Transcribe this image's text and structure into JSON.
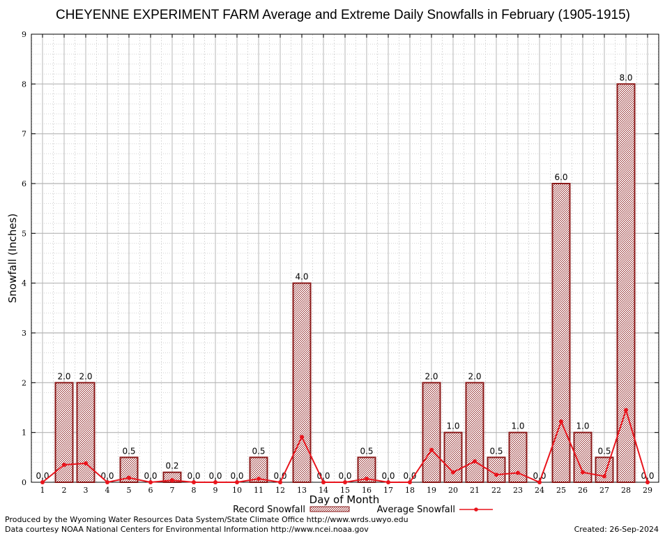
{
  "chart_data": {
    "type": "bar",
    "title": "CHEYENNE EXPERIMENT FARM Average and Extreme Daily Snowfalls in February (1905-1915)",
    "xlabel": "Day of Month",
    "ylabel": "Snowfall (Inches)",
    "ylim": [
      0,
      9
    ],
    "yticks": [
      0,
      1,
      2,
      3,
      4,
      5,
      6,
      7,
      8,
      9
    ],
    "categories": [
      "1",
      "2",
      "3",
      "4",
      "5",
      "6",
      "7",
      "8",
      "9",
      "10",
      "11",
      "12",
      "13",
      "14",
      "15",
      "16",
      "17",
      "18",
      "19",
      "20",
      "21",
      "22",
      "23",
      "24",
      "25",
      "26",
      "27",
      "28",
      "29"
    ],
    "series": [
      {
        "name": "Record Snowfall",
        "type": "bar",
        "color": "#8b1a1a",
        "values": [
          0.0,
          2.0,
          2.0,
          0.0,
          0.5,
          0.0,
          0.2,
          0.0,
          0.0,
          0.0,
          0.5,
          0.0,
          4.0,
          0.0,
          0.0,
          0.5,
          0.0,
          0.0,
          2.0,
          1.0,
          2.0,
          0.5,
          1.0,
          0.0,
          6.0,
          1.0,
          0.5,
          8.0,
          0.0
        ],
        "labels": [
          "0.0",
          "2.0",
          "2.0",
          "0.0",
          "0.5",
          "0.0",
          "0.2",
          "0.0",
          "0.0",
          "0.0",
          "0.5",
          "0.0",
          "4.0",
          "0.0",
          "0.0",
          "0.5",
          "0.0",
          "0.0",
          "2.0",
          "1.0",
          "2.0",
          "0.5",
          "1.0",
          "0.0",
          "6.0",
          "1.0",
          "0.5",
          "8.0",
          "0.0"
        ]
      },
      {
        "name": "Average Snowfall",
        "type": "line",
        "color": "#e8141c",
        "values": [
          0.0,
          0.35,
          0.38,
          0.0,
          0.09,
          0.0,
          0.04,
          0.0,
          0.0,
          0.0,
          0.07,
          0.0,
          0.91,
          0.0,
          0.0,
          0.07,
          0.0,
          0.0,
          0.65,
          0.2,
          0.42,
          0.15,
          0.19,
          0.0,
          1.22,
          0.2,
          0.12,
          1.45,
          0.0
        ]
      }
    ],
    "grid": true,
    "legend": "bottom"
  },
  "footer": {
    "credit_line1": "Produced by the Wyoming Water Resources Data System/State Climate Office http://www.wrds.uwyo.edu",
    "credit_line2": "Data courtesy NOAA National Centers for Environmental Information http://www.ncei.noaa.gov",
    "created": "Created: 26-Sep-2024"
  }
}
